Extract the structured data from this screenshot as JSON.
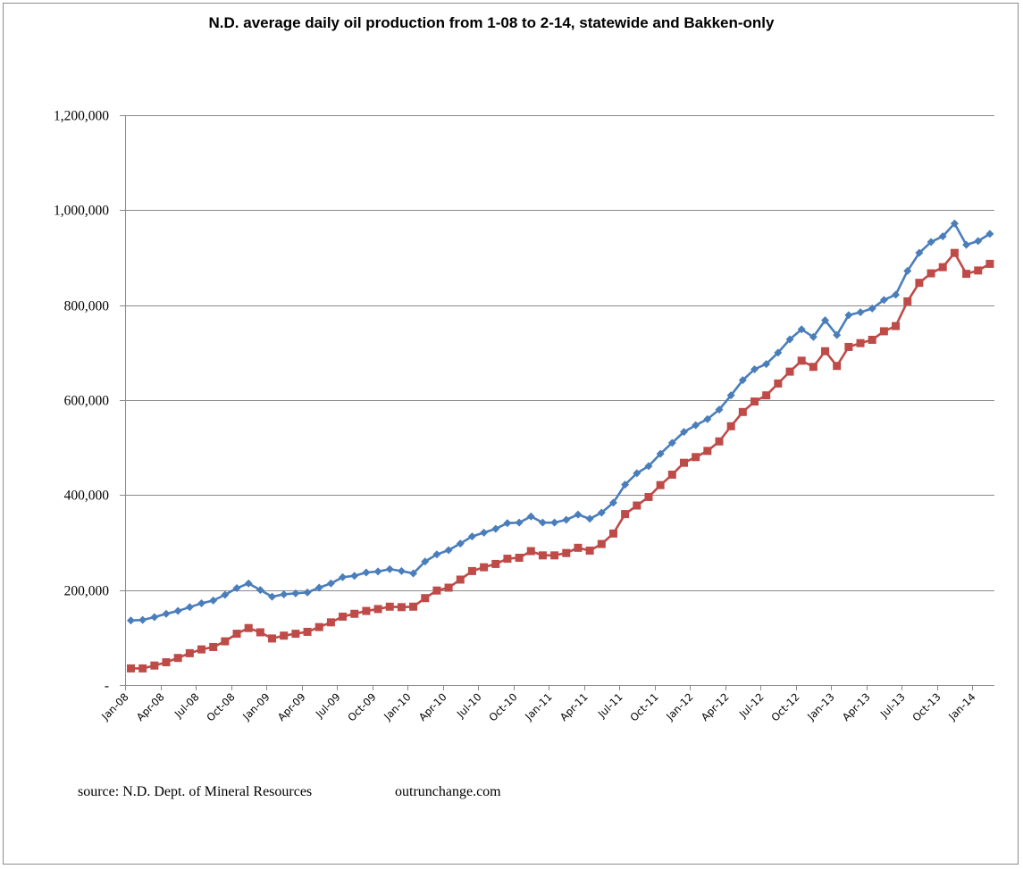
{
  "chart_data": {
    "type": "line",
    "title": "N.D. average daily oil production  from 1-08 to 2-14, statewide and Bakken-only",
    "xlabel": "",
    "ylabel": "",
    "ylim": [
      0,
      1200000
    ],
    "y_ticks": [
      0,
      200000,
      400000,
      600000,
      800000,
      1000000,
      1200000
    ],
    "y_tick_labels": [
      "-",
      "200,000",
      "400,000",
      "600,000",
      "800,000",
      "1,000,000",
      "1,200,000"
    ],
    "x_tick_labels": [
      "Jan-08",
      "Apr-08",
      "Jul-08",
      "Oct-08",
      "Jan-09",
      "Apr-09",
      "Jul-09",
      "Oct-09",
      "Jan-10",
      "Apr-10",
      "Jul-10",
      "Oct-10",
      "Jan-11",
      "Apr-11",
      "Jul-11",
      "Oct-11",
      "Jan-12",
      "Apr-12",
      "Jul-12",
      "Oct-12",
      "Jan-13",
      "Apr-13",
      "Jul-13",
      "Oct-13",
      "Jan-14"
    ],
    "x_tick_every_months": 3,
    "grid": true,
    "legend": "none",
    "series": [
      {
        "name": "Statewide",
        "color": "#4a7ebb",
        "marker": "diamond",
        "values": [
          136000,
          137000,
          143000,
          150000,
          156000,
          164000,
          172000,
          178000,
          190000,
          204000,
          214000,
          200000,
          186000,
          191000,
          193000,
          195000,
          205000,
          214000,
          227000,
          230000,
          237000,
          239000,
          244000,
          240000,
          235000,
          260000,
          275000,
          284000,
          298000,
          313000,
          321000,
          329000,
          341000,
          342000,
          355000,
          342000,
          342000,
          348000,
          359000,
          350000,
          363000,
          384000,
          422000,
          446000,
          461000,
          487000,
          510000,
          533000,
          547000,
          560000,
          580000,
          610000,
          642000,
          665000,
          676000,
          700000,
          728000,
          749000,
          733000,
          768000,
          737000,
          779000,
          785000,
          793000,
          811000,
          822000,
          872000,
          910000,
          933000,
          945000,
          972000,
          927000,
          935000,
          950000
        ]
      },
      {
        "name": "Bakken-only",
        "color": "#be4b48",
        "marker": "square",
        "values": [
          35000,
          35000,
          41000,
          48000,
          57000,
          67000,
          75000,
          80000,
          92000,
          108000,
          120000,
          111000,
          98000,
          104000,
          108000,
          112000,
          122000,
          132000,
          144000,
          150000,
          156000,
          160000,
          165000,
          164000,
          165000,
          183000,
          199000,
          205000,
          222000,
          240000,
          248000,
          255000,
          266000,
          268000,
          282000,
          273000,
          273000,
          278000,
          289000,
          283000,
          297000,
          319000,
          360000,
          378000,
          396000,
          421000,
          443000,
          468000,
          480000,
          493000,
          513000,
          545000,
          575000,
          597000,
          610000,
          635000,
          660000,
          683000,
          670000,
          703000,
          672000,
          712000,
          720000,
          727000,
          745000,
          756000,
          808000,
          847000,
          867000,
          880000,
          910000,
          866000,
          873000,
          887000
        ]
      }
    ]
  },
  "footer": {
    "source": "source: N.D. Dept. of Mineral Resources",
    "site": "outrunchange.com"
  }
}
